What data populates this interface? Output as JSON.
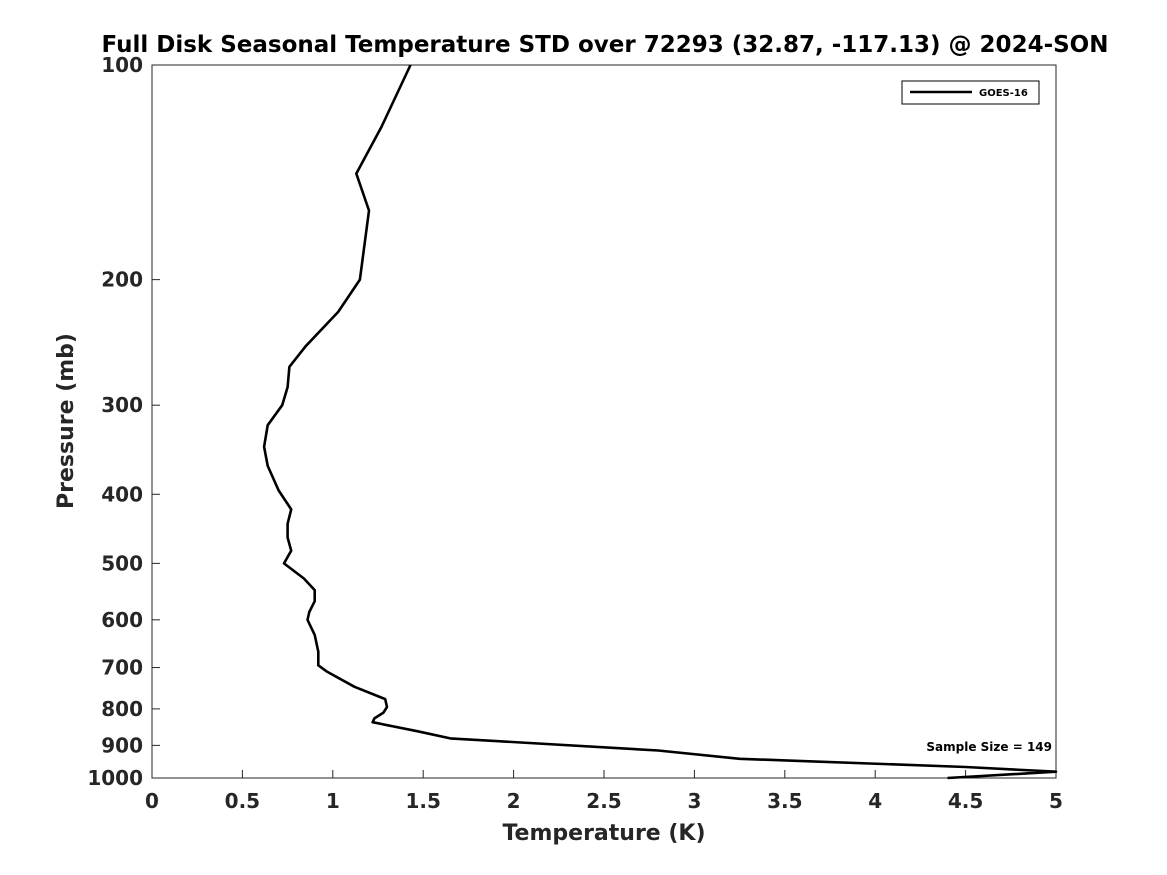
{
  "chart_data": {
    "type": "line",
    "title": "Full Disk Seasonal Temperature STD over 72293 (32.87, -117.13) @ 2024-SON",
    "xlabel": "Temperature (K)",
    "ylabel": "Pressure (mb)",
    "xlim": [
      0,
      5
    ],
    "ylim": [
      100,
      1000
    ],
    "yscale": "log",
    "y_reversed": true,
    "x_ticks": [
      0,
      0.5,
      1,
      1.5,
      2,
      2.5,
      3,
      3.5,
      4,
      4.5,
      5
    ],
    "x_tick_labels": [
      "0",
      "0.5",
      "1",
      "1.5",
      "2",
      "2.5",
      "3",
      "3.5",
      "4",
      "4.5",
      "5"
    ],
    "y_ticks": [
      100,
      200,
      300,
      400,
      500,
      600,
      700,
      800,
      900,
      1000
    ],
    "y_tick_labels": [
      "100",
      "200",
      "300",
      "400",
      "500",
      "600",
      "700",
      "800",
      "900",
      "1000"
    ],
    "grid": false,
    "legend_position": "top-right",
    "annotation": "Sample Size = 149",
    "series": [
      {
        "name": "GOES-16",
        "color": "#000000",
        "x": [
          1.43,
          1.27,
          1.13,
          1.2,
          1.15,
          1.03,
          0.85,
          0.76,
          0.75,
          0.72,
          0.64,
          0.62,
          0.64,
          0.7,
          0.77,
          0.75,
          0.75,
          0.77,
          0.73,
          0.84,
          0.9,
          0.9,
          0.87,
          0.86,
          0.9,
          0.92,
          0.92,
          0.97,
          1.12,
          1.29,
          1.3,
          1.28,
          1.23,
          1.22,
          1.47,
          1.65,
          2.8,
          3.25,
          4.5,
          5.0,
          4.4
        ],
        "y": [
          100,
          122,
          142,
          160,
          200,
          222,
          248,
          265,
          283,
          300,
          320,
          343,
          365,
          395,
          420,
          440,
          460,
          480,
          500,
          525,
          545,
          565,
          585,
          600,
          630,
          665,
          695,
          710,
          745,
          775,
          795,
          810,
          825,
          835,
          860,
          880,
          915,
          940,
          965,
          980,
          1000
        ]
      }
    ]
  }
}
